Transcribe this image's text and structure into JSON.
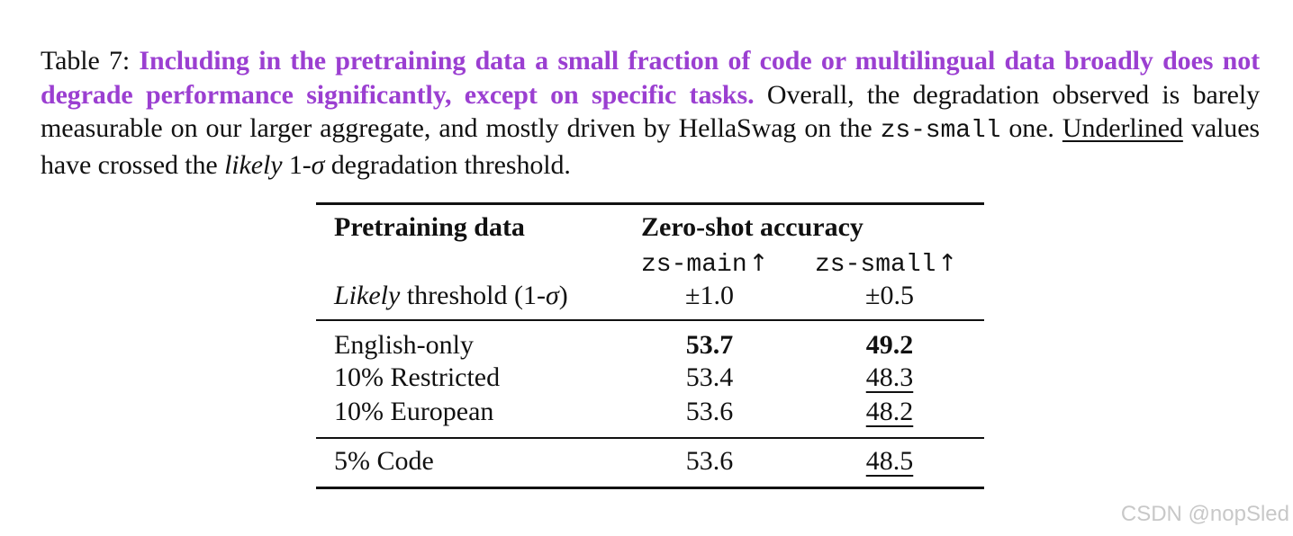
{
  "caption": {
    "label": "Table 7:",
    "lead": "Including in the pretraining data a small fraction of code or multilingual data broadly does not degrade performance significantly, except on specific tasks.",
    "body_1": "Overall, the degradation observed is barely measurable on our larger aggregate, and mostly driven by HellaSwag on the",
    "mono_term": "zs-small",
    "body_2": "one.",
    "underlined_word": "Underlined",
    "body_3": "values have crossed the",
    "italic_word": "likely",
    "body_4": "1-",
    "sigma": "σ",
    "body_5": "degradation threshold."
  },
  "table": {
    "header": {
      "col1": "Pretraining data",
      "group": "Zero-shot accuracy",
      "col2": "zs-main",
      "col3": "zs-small",
      "arrow": "↑"
    },
    "threshold_row": {
      "label_italic": "Likely",
      "label_rest": "threshold (1-",
      "sigma": "σ",
      "label_close": ")",
      "col2": "±1.0",
      "col3": "±0.5"
    },
    "rows": [
      {
        "label": "English-only",
        "zs_main": "53.7",
        "zs_small": "49.2",
        "main_bold": true,
        "small_bold": true,
        "small_underlined": false
      },
      {
        "label": "10% Restricted",
        "zs_main": "53.4",
        "zs_small": "48.3",
        "main_bold": false,
        "small_bold": false,
        "small_underlined": true
      },
      {
        "label": "10% European",
        "zs_main": "53.6",
        "zs_small": "48.2",
        "main_bold": false,
        "small_bold": false,
        "small_underlined": true
      },
      {
        "label": "5% Code",
        "zs_main": "53.6",
        "zs_small": "48.5",
        "main_bold": false,
        "small_bold": false,
        "small_underlined": true
      }
    ]
  },
  "watermark": "CSDN @nopSled"
}
